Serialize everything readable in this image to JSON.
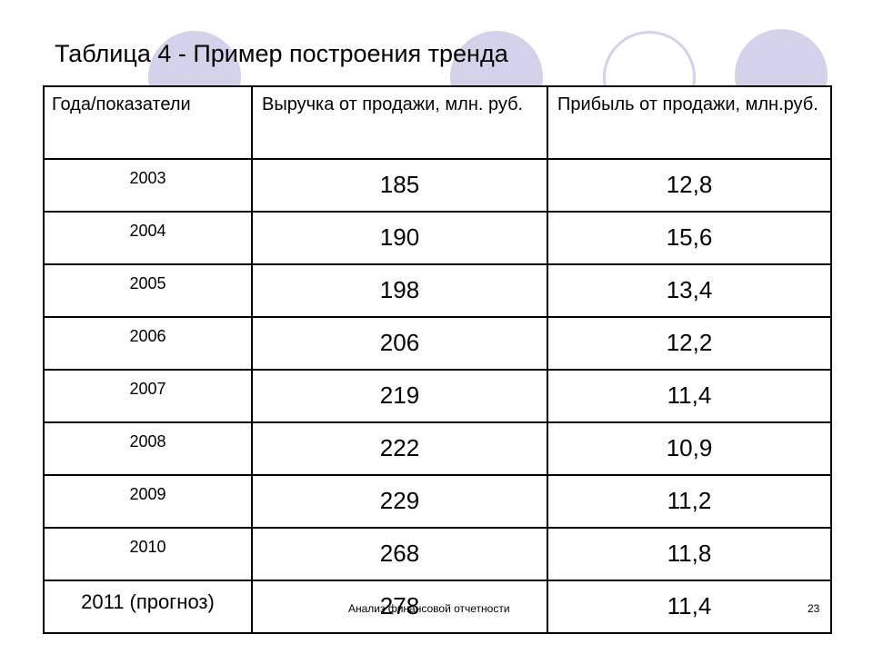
{
  "title": "Таблица 4 - Пример построения тренда",
  "table": {
    "headers": {
      "year": "Года/показатели",
      "revenue": "Выручка от продажи, млн. руб.",
      "profit": "Прибыль от продажи, млн.руб."
    },
    "rows": [
      {
        "year": "2003",
        "revenue": "185",
        "profit": "12,8"
      },
      {
        "year": "2004",
        "revenue": "190",
        "profit": "15,6"
      },
      {
        "year": "2005",
        "revenue": "198",
        "profit": "13,4"
      },
      {
        "year": "2006",
        "revenue": "206",
        "profit": "12,2"
      },
      {
        "year": "2007",
        "revenue": "219",
        "profit": "11,4"
      },
      {
        "year": "2008",
        "revenue": "222",
        "profit": "10,9"
      },
      {
        "year": "2009",
        "revenue": "229",
        "profit": "11,2"
      },
      {
        "year": "2010",
        "revenue": "268",
        "profit": "11,8"
      },
      {
        "year": "2011 (прогноз)",
        "revenue": "278",
        "profit": "11,4"
      }
    ]
  },
  "footer": {
    "text": "Анализ финансовой отчетности",
    "page_number": "23"
  },
  "colors": {
    "decor_circle": "#d2d2ea"
  }
}
